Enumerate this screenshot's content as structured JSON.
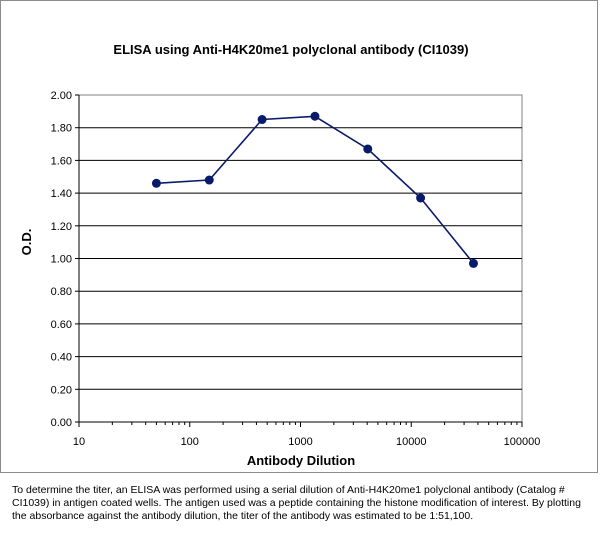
{
  "chart_data": {
    "type": "line",
    "title": "ELISA using Anti-H4K20me1 polyclonal antibody (CI1039)",
    "xlabel": "Antibody Dilution",
    "ylabel": "O.D.",
    "x_scale": "log",
    "xlim": [
      10,
      100000
    ],
    "ylim": [
      0,
      2
    ],
    "x_ticks": [
      "10",
      "100",
      "1000",
      "10000",
      "100000"
    ],
    "y_ticks": [
      "0.00",
      "0.20",
      "0.40",
      "0.60",
      "0.80",
      "1.00",
      "1.20",
      "1.40",
      "1.60",
      "1.80",
      "2.00"
    ],
    "grid": "horizontal",
    "legend": "none",
    "series": [
      {
        "color": "#0a1a6b",
        "x": [
          50,
          150,
          450,
          1350,
          4050,
          12150,
          36450
        ],
        "y": [
          1.46,
          1.48,
          1.85,
          1.87,
          1.67,
          1.37,
          0.97
        ]
      }
    ]
  },
  "caption": "To determine the titer, an ELISA was performed using a serial dilution of Anti-H4K20me1 polyclonal antibody (Catalog # CI1039) in antigen coated wells. The antigen used was a peptide containing the histone modification of interest. By plotting the absorbance against the antibody dilution, the titer of the antibody was estimated to be 1:51,100."
}
